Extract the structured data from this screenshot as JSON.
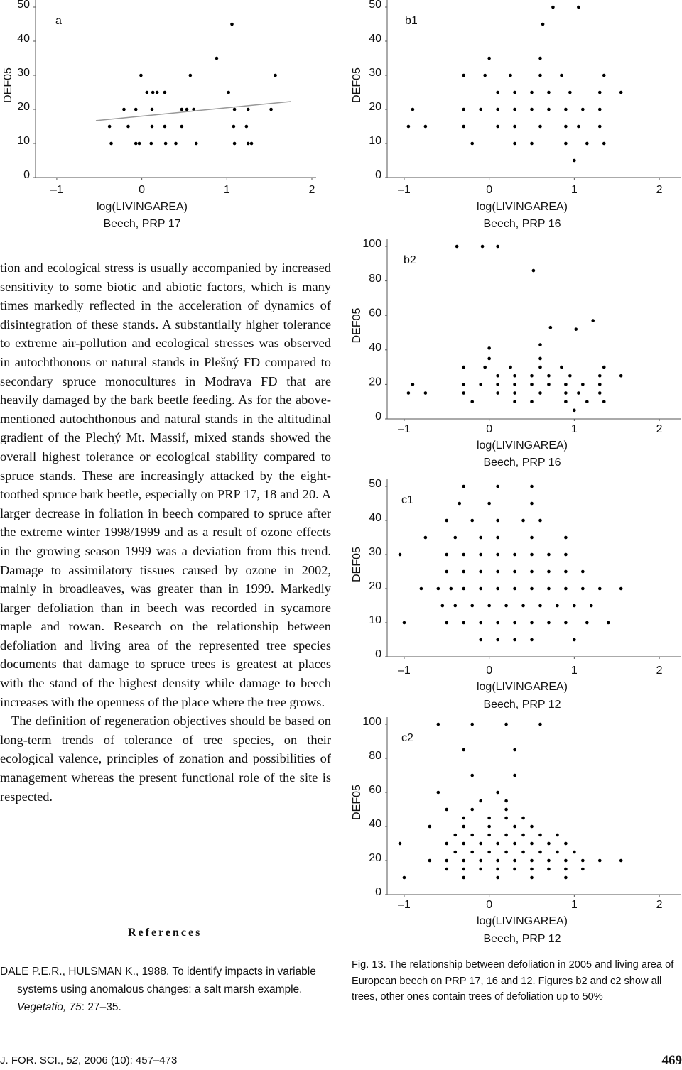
{
  "chart_data": [
    {
      "type": "scatter",
      "panel": "a",
      "y_label": "DEF05",
      "x_label": "log(LIVINGAREA)",
      "subtitle": "Beech, PRP 17",
      "color": "#000000",
      "xlim": [
        -1.25,
        2.05
      ],
      "ylim": [
        0,
        50
      ],
      "xticks": [
        {
          "value": -1,
          "label": "–1"
        },
        0,
        1,
        2
      ],
      "yticks": [
        0,
        10,
        20,
        30,
        40,
        50
      ],
      "x": [
        -0.36,
        -0.07,
        -0.03,
        0.11,
        0.28,
        0.4,
        0.64,
        1.09,
        1.25,
        1.29,
        -0.38,
        -0.16,
        0.12,
        0.27,
        0.47,
        1.08,
        1.23,
        -0.21,
        -0.07,
        0.12,
        0.47,
        0.53,
        0.61,
        1.09,
        1.25,
        1.52,
        0.06,
        0.13,
        0.18,
        0.27,
        1.02,
        -0.01,
        0.57,
        1.57,
        0.88,
        1.06
      ],
      "values": [
        10,
        10,
        10,
        10,
        10,
        10,
        10,
        10,
        10,
        10,
        15,
        15,
        15,
        15,
        15,
        15,
        15,
        20,
        20,
        20,
        20,
        20,
        20,
        20,
        20,
        20,
        25,
        25,
        25,
        25,
        25,
        30,
        30,
        30,
        35,
        45
      ],
      "trend": {
        "x": [
          -0.54,
          1.75
        ],
        "values": [
          16.7,
          22.3
        ]
      }
    },
    {
      "type": "scatter",
      "panel": "b1",
      "y_label": "DEF05",
      "x_label": "log(LIVINGAREA)",
      "subtitle": "Beech, PRP 16",
      "color": "#000000",
      "xlim": [
        -1.2,
        2.25
      ],
      "ylim": [
        0,
        50
      ],
      "xticks": [
        {
          "value": -1,
          "label": "–1"
        },
        0,
        1,
        2
      ],
      "yticks": [
        0,
        10,
        20,
        30,
        40,
        50
      ],
      "x": [
        1.0,
        -0.2,
        0.3,
        0.5,
        0.9,
        1.15,
        1.35,
        -0.95,
        -0.75,
        -0.3,
        0.1,
        0.3,
        0.6,
        0.9,
        1.05,
        1.3,
        -0.9,
        -0.3,
        -0.1,
        0.1,
        0.3,
        0.5,
        0.7,
        0.9,
        1.1,
        1.3,
        0.1,
        0.3,
        0.5,
        0.7,
        0.95,
        1.3,
        1.55,
        -0.3,
        -0.05,
        0.25,
        0.6,
        0.85,
        1.35,
        0.0,
        0.6,
        0.63,
        0.75,
        1.05
      ],
      "values": [
        5,
        10,
        10,
        10,
        10,
        10,
        10,
        15,
        15,
        15,
        15,
        15,
        15,
        15,
        15,
        15,
        20,
        20,
        20,
        20,
        20,
        20,
        20,
        20,
        20,
        20,
        25,
        25,
        25,
        25,
        25,
        25,
        25,
        30,
        30,
        30,
        30,
        30,
        30,
        35,
        35,
        45,
        50,
        50
      ]
    },
    {
      "type": "scatter",
      "panel": "b2",
      "y_label": "DEF05",
      "x_label": "log(LIVINGAREA)",
      "subtitle": "Beech, PRP 16",
      "color": "#000000",
      "xlim": [
        -1.2,
        2.25
      ],
      "ylim": [
        0,
        100
      ],
      "xticks": [
        {
          "value": -1,
          "label": "–1"
        },
        0,
        1,
        2
      ],
      "yticks": [
        0,
        20,
        40,
        60,
        80,
        100
      ],
      "x": [
        1.0,
        -0.2,
        0.3,
        0.5,
        0.9,
        1.15,
        1.35,
        -0.95,
        -0.75,
        -0.3,
        0.1,
        0.3,
        0.6,
        0.9,
        1.05,
        1.3,
        -0.9,
        -0.3,
        -0.1,
        0.1,
        0.3,
        0.5,
        0.7,
        0.9,
        1.1,
        1.3,
        0.1,
        0.3,
        0.5,
        0.7,
        0.95,
        1.3,
        1.55,
        -0.3,
        -0.05,
        0.25,
        0.6,
        0.85,
        1.35,
        0.0,
        0.6,
        0.0,
        0.6,
        0.72,
        1.02,
        1.22,
        0.52,
        -0.38,
        -0.08,
        0.1
      ],
      "values": [
        5,
        10,
        10,
        10,
        10,
        10,
        10,
        15,
        15,
        15,
        15,
        15,
        15,
        15,
        15,
        15,
        20,
        20,
        20,
        20,
        20,
        20,
        20,
        20,
        20,
        20,
        25,
        25,
        25,
        25,
        25,
        25,
        25,
        30,
        30,
        30,
        30,
        30,
        30,
        35,
        35,
        41,
        43,
        53,
        52,
        57,
        86,
        100,
        100,
        100
      ]
    },
    {
      "type": "scatter",
      "panel": "c1",
      "y_label": "DEF05",
      "x_label": "log(LIVINGAREA)",
      "subtitle": "Beech, PRP 12",
      "color": "#000000",
      "xlim": [
        -1.2,
        2.25
      ],
      "ylim": [
        0,
        50
      ],
      "xticks": [
        {
          "value": -1,
          "label": "–1"
        },
        0,
        1,
        2
      ],
      "yticks": [
        0,
        10,
        20,
        30,
        40,
        50
      ],
      "x": [
        -0.1,
        0.1,
        0.3,
        0.5,
        1.0,
        -1.0,
        -0.5,
        -0.3,
        -0.1,
        0.1,
        0.3,
        0.5,
        0.7,
        0.9,
        1.15,
        1.4,
        -0.55,
        -0.4,
        -0.2,
        0.0,
        0.2,
        0.4,
        0.6,
        0.8,
        1.0,
        1.2,
        -0.8,
        -0.6,
        -0.45,
        -0.3,
        -0.1,
        0.1,
        0.3,
        0.5,
        0.7,
        0.9,
        1.1,
        1.3,
        1.55,
        -0.5,
        -0.3,
        -0.1,
        0.1,
        0.3,
        0.5,
        0.7,
        0.9,
        1.1,
        -1.05,
        -0.5,
        -0.3,
        -0.1,
        0.1,
        0.3,
        0.5,
        0.7,
        0.9,
        -0.75,
        -0.4,
        -0.1,
        0.1,
        0.5,
        0.9,
        -0.5,
        -0.2,
        0.1,
        0.4,
        0.6,
        -0.35,
        0.0,
        0.5,
        -0.3,
        0.1,
        0.5
      ],
      "values": [
        5,
        5,
        5,
        5,
        5,
        10,
        10,
        10,
        10,
        10,
        10,
        10,
        10,
        10,
        10,
        10,
        15,
        15,
        15,
        15,
        15,
        15,
        15,
        15,
        15,
        15,
        20,
        20,
        20,
        20,
        20,
        20,
        20,
        20,
        20,
        20,
        20,
        20,
        20,
        25,
        25,
        25,
        25,
        25,
        25,
        25,
        25,
        25,
        30,
        30,
        30,
        30,
        30,
        30,
        30,
        30,
        30,
        35,
        35,
        35,
        35,
        35,
        35,
        40,
        40,
        40,
        40,
        40,
        45,
        45,
        45,
        50,
        50,
        50
      ]
    },
    {
      "type": "scatter",
      "panel": "c2",
      "y_label": "DEF05",
      "x_label": "log(LIVINGAREA)",
      "subtitle": "Beech, PRP 12",
      "color": "#000000",
      "xlim": [
        -1.2,
        2.25
      ],
      "ylim": [
        0,
        100
      ],
      "xticks": [
        {
          "value": -1,
          "label": "–1"
        },
        0,
        1,
        2
      ],
      "yticks": [
        0,
        20,
        40,
        60,
        80,
        100
      ],
      "x": [
        -1.0,
        -0.3,
        0.1,
        0.5,
        0.9,
        -0.5,
        -0.3,
        -0.1,
        0.1,
        0.3,
        0.5,
        0.7,
        0.9,
        1.1,
        -0.7,
        -0.5,
        -0.3,
        -0.1,
        0.1,
        0.3,
        0.5,
        0.7,
        0.9,
        1.1,
        1.3,
        1.55,
        -0.4,
        -0.2,
        0.0,
        0.2,
        0.4,
        0.6,
        0.8,
        1.0,
        -1.05,
        -0.5,
        -0.3,
        -0.1,
        0.1,
        0.3,
        0.5,
        0.7,
        0.9,
        -0.4,
        -0.2,
        0.0,
        0.2,
        0.4,
        0.6,
        0.8,
        -0.7,
        -0.3,
        0.0,
        0.3,
        0.5,
        -0.3,
        0.0,
        0.2,
        0.4,
        -0.5,
        -0.2,
        0.2,
        -0.1,
        0.2,
        -0.6,
        0.1,
        -0.2,
        0.3,
        -0.3,
        0.3,
        -0.6,
        -0.2,
        0.2,
        0.6
      ],
      "values": [
        10,
        10,
        10,
        10,
        10,
        15,
        15,
        15,
        15,
        15,
        15,
        15,
        15,
        15,
        20,
        20,
        20,
        20,
        20,
        20,
        20,
        20,
        20,
        20,
        20,
        20,
        25,
        25,
        25,
        25,
        25,
        25,
        25,
        25,
        30,
        30,
        30,
        30,
        30,
        30,
        30,
        30,
        30,
        35,
        35,
        35,
        35,
        35,
        35,
        35,
        40,
        40,
        40,
        40,
        40,
        45,
        45,
        45,
        45,
        50,
        50,
        50,
        55,
        55,
        60,
        60,
        70,
        70,
        85,
        85,
        100,
        100,
        100,
        100
      ]
    }
  ],
  "body": {
    "paragraphs": [
      "tion and ecological stress is usually accompanied by increased sensitivity to some biotic and abiotic factors, which is many times markedly reflected in the acceleration of dynamics of disintegration of these stands. A substantially higher tolerance to extreme air-pollution and ecological stresses was observed in autochthonous or natural stands in Plešný FD compared to secondary spruce monocultures in Modrava FD that are heavily damaged by the bark beetle feeding. As for the above-mentioned autochthonous and natural stands in the altitudinal gradient of the Plechý Mt. Massif, mixed stands showed the overall highest tolerance or ecological stability compared to spruce stands. These are increasingly attacked by the eight-toothed spruce bark beetle, especially on PRP 17, 18 and 20. A larger decrease in foliation in beech compared to spruce after the extreme winter 1998/1999 and as a result of ozone effects in the growing season 1999 was a deviation from this trend. Damage to assimilatory tissues caused by ozone in 2002, mainly in broadleaves, was greater than in 1999. Markedly larger defoliation than in beech was recorded in sycamore maple and rowan. Research on the relationship between defoliation and living area of the represented tree species documents that damage to spruce trees is greatest at places with the stand of the highest density while damage to beech increases with the openness of the place where the tree grows.",
      "The definition of regeneration objectives should be based on long-term trends of tolerance of tree species, on their ecological valence, principles of zonation and possibilities of management whereas the present functional role of the site is respected."
    ]
  },
  "references": {
    "heading": "References",
    "items": [
      [
        "DALE P.E.R., HULSMAN K., 1988. To identify impacts in variable systems using anomalous changes: a salt marsh example. ",
        "Vegetatio, 75",
        ": 27–35."
      ]
    ]
  },
  "caption": "Fig. 13. The relationship between defoliation in 2005 and living area of European beech on PRP 17, 16 and 12. Figures b2 and c2 show all trees, other ones contain trees of defoliation up to 50%",
  "footer": {
    "journal": [
      "J. FOR. SCI., ",
      "52",
      ", 2006 (10): 457–473"
    ],
    "page": "469"
  }
}
